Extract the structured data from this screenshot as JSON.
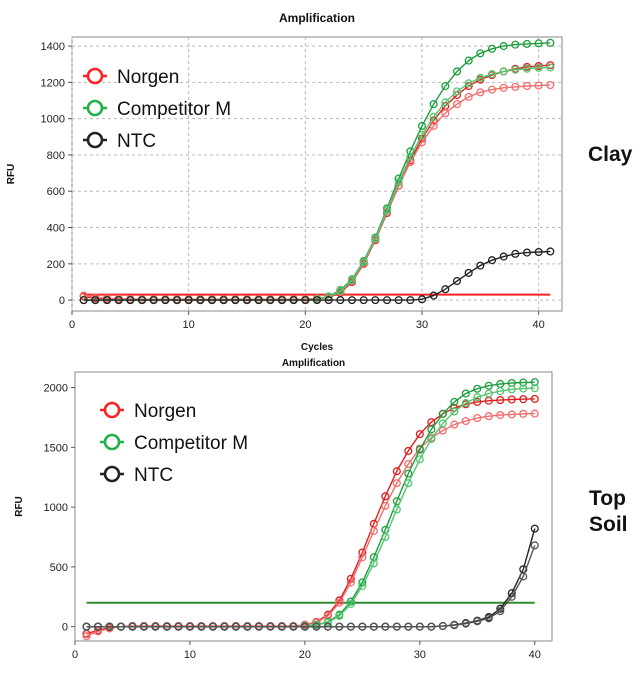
{
  "chart_data": [
    {
      "type": "line",
      "title": "Amplification",
      "xlabel": "Cycles",
      "ylabel": "RFU",
      "side_label": [
        "Clay"
      ],
      "xlim": [
        0,
        42
      ],
      "ylim": [
        -60,
        1450
      ],
      "xticks": [
        0,
        10,
        20,
        30,
        40
      ],
      "yticks": [
        0,
        200,
        400,
        600,
        800,
        1000,
        1200,
        1400
      ],
      "grid": true,
      "legend_position": "top-left",
      "legend": [
        {
          "label": "Norgen",
          "color": "#ff2222"
        },
        {
          "label": "Competitor M",
          "color": "#1fb24a"
        },
        {
          "label": "NTC",
          "color": "#222222"
        }
      ],
      "threshold": {
        "y": 30,
        "color": "#ff2222"
      },
      "x": [
        1,
        2,
        3,
        4,
        5,
        6,
        7,
        8,
        9,
        10,
        11,
        12,
        13,
        14,
        15,
        16,
        17,
        18,
        19,
        20,
        21,
        22,
        23,
        24,
        25,
        26,
        27,
        28,
        29,
        30,
        31,
        32,
        33,
        34,
        35,
        36,
        37,
        38,
        39,
        40,
        41
      ],
      "series": [
        {
          "name": "Norgen",
          "color": "#e01e1e",
          "marker_color": "#e01e1e",
          "values": [
            20,
            10,
            8,
            5,
            5,
            5,
            5,
            5,
            5,
            5,
            5,
            5,
            5,
            5,
            5,
            5,
            5,
            5,
            5,
            5,
            8,
            15,
            40,
            100,
            200,
            330,
            480,
            630,
            770,
            890,
            990,
            1070,
            1130,
            1180,
            1215,
            1240,
            1260,
            1275,
            1285,
            1290,
            1295
          ]
        },
        {
          "name": "Norgen",
          "color": "#f26d6d",
          "marker_color": "#f26d6d",
          "values": [
            25,
            15,
            10,
            8,
            6,
            5,
            5,
            5,
            5,
            5,
            5,
            5,
            5,
            5,
            5,
            5,
            5,
            5,
            5,
            5,
            10,
            18,
            45,
            105,
            205,
            335,
            485,
            630,
            760,
            870,
            960,
            1030,
            1080,
            1120,
            1145,
            1160,
            1170,
            1175,
            1180,
            1182,
            1185
          ]
        },
        {
          "name": "Competitor M",
          "color": "#1f9e3f",
          "marker_color": "#1f9e3f",
          "values": [
            0,
            0,
            0,
            0,
            0,
            0,
            0,
            0,
            0,
            0,
            0,
            0,
            0,
            0,
            0,
            0,
            0,
            0,
            0,
            0,
            5,
            20,
            55,
            115,
            215,
            345,
            505,
            670,
            820,
            960,
            1080,
            1180,
            1260,
            1320,
            1360,
            1385,
            1400,
            1408,
            1412,
            1415,
            1418
          ]
        },
        {
          "name": "Competitor M",
          "color": "#53c56f",
          "marker_color": "#53c56f",
          "values": [
            0,
            0,
            0,
            0,
            0,
            0,
            0,
            0,
            0,
            0,
            0,
            0,
            0,
            0,
            0,
            0,
            0,
            0,
            0,
            0,
            5,
            18,
            50,
            110,
            210,
            340,
            495,
            650,
            790,
            910,
            1010,
            1090,
            1150,
            1195,
            1225,
            1245,
            1260,
            1270,
            1275,
            1280,
            1282
          ]
        },
        {
          "name": "NTC",
          "color": "#222222",
          "marker_color": "#222222",
          "values": [
            0,
            0,
            0,
            0,
            0,
            0,
            0,
            0,
            0,
            0,
            0,
            0,
            0,
            0,
            0,
            0,
            0,
            0,
            0,
            0,
            0,
            0,
            0,
            0,
            0,
            0,
            0,
            0,
            0,
            5,
            25,
            60,
            105,
            150,
            190,
            220,
            240,
            255,
            262,
            265,
            268
          ]
        }
      ]
    },
    {
      "type": "line",
      "title": "Amplification",
      "xlabel": "",
      "ylabel": "RFU",
      "side_label": [
        "Top",
        "Soil"
      ],
      "xlim": [
        0,
        41.5
      ],
      "ylim": [
        -120,
        2130
      ],
      "xticks": [
        0,
        10,
        20,
        30,
        40
      ],
      "yticks": [
        0,
        500,
        1000,
        1500,
        2000
      ],
      "grid": false,
      "legend_position": "top-left",
      "legend": [
        {
          "label": "Norgen",
          "color": "#ff2222"
        },
        {
          "label": "Competitor M",
          "color": "#1fb24a"
        },
        {
          "label": "NTC",
          "color": "#222222"
        }
      ],
      "threshold": {
        "y": 200,
        "color": "#2e8b2e"
      },
      "x": [
        1,
        2,
        3,
        4,
        5,
        6,
        7,
        8,
        9,
        10,
        11,
        12,
        13,
        14,
        15,
        16,
        17,
        18,
        19,
        20,
        21,
        22,
        23,
        24,
        25,
        26,
        27,
        28,
        29,
        30,
        31,
        32,
        33,
        34,
        35,
        36,
        37,
        38,
        39,
        40
      ],
      "series": [
        {
          "name": "Norgen",
          "color": "#e01e1e",
          "marker_color": "#e01e1e",
          "values": [
            -60,
            -30,
            -10,
            0,
            5,
            5,
            5,
            5,
            5,
            5,
            5,
            5,
            5,
            5,
            5,
            5,
            5,
            5,
            5,
            15,
            40,
            100,
            220,
            400,
            620,
            860,
            1090,
            1300,
            1470,
            1610,
            1710,
            1780,
            1830,
            1860,
            1880,
            1890,
            1895,
            1900,
            1903,
            1905
          ]
        },
        {
          "name": "Norgen",
          "color": "#f26d6d",
          "marker_color": "#f26d6d",
          "values": [
            -80,
            -40,
            -15,
            0,
            5,
            5,
            5,
            5,
            5,
            5,
            5,
            5,
            5,
            5,
            5,
            5,
            5,
            5,
            5,
            12,
            35,
            90,
            200,
            370,
            580,
            800,
            1010,
            1200,
            1360,
            1490,
            1580,
            1640,
            1690,
            1720,
            1745,
            1760,
            1770,
            1775,
            1780,
            1782
          ]
        },
        {
          "name": "Competitor M",
          "color": "#1f9e3f",
          "marker_color": "#1f9e3f",
          "values": [
            0,
            0,
            0,
            0,
            0,
            0,
            0,
            0,
            0,
            0,
            0,
            0,
            0,
            0,
            0,
            0,
            0,
            0,
            0,
            5,
            15,
            40,
            100,
            210,
            370,
            580,
            810,
            1050,
            1280,
            1480,
            1650,
            1780,
            1880,
            1950,
            1990,
            2015,
            2030,
            2038,
            2042,
            2045
          ]
        },
        {
          "name": "Competitor M",
          "color": "#53c56f",
          "marker_color": "#53c56f",
          "values": [
            0,
            0,
            0,
            0,
            0,
            0,
            0,
            0,
            0,
            0,
            0,
            0,
            0,
            0,
            0,
            0,
            0,
            0,
            0,
            5,
            12,
            35,
            90,
            190,
            340,
            530,
            750,
            980,
            1200,
            1400,
            1570,
            1700,
            1800,
            1870,
            1920,
            1950,
            1970,
            1985,
            1992,
            1995
          ]
        },
        {
          "name": "NTC",
          "color": "#222222",
          "marker_color": "#222222",
          "values": [
            0,
            0,
            0,
            0,
            0,
            0,
            0,
            0,
            0,
            0,
            0,
            0,
            0,
            0,
            0,
            0,
            0,
            0,
            0,
            0,
            0,
            0,
            0,
            0,
            0,
            0,
            0,
            0,
            0,
            0,
            0,
            5,
            15,
            30,
            50,
            80,
            150,
            280,
            480,
            820
          ]
        },
        {
          "name": "NTC",
          "color": "#555555",
          "marker_color": "#555555",
          "values": [
            0,
            0,
            0,
            0,
            0,
            0,
            0,
            0,
            0,
            0,
            0,
            0,
            0,
            0,
            0,
            0,
            0,
            0,
            0,
            0,
            0,
            0,
            0,
            0,
            0,
            0,
            0,
            0,
            0,
            0,
            0,
            5,
            12,
            25,
            45,
            70,
            130,
            250,
            420,
            680
          ]
        }
      ]
    }
  ]
}
